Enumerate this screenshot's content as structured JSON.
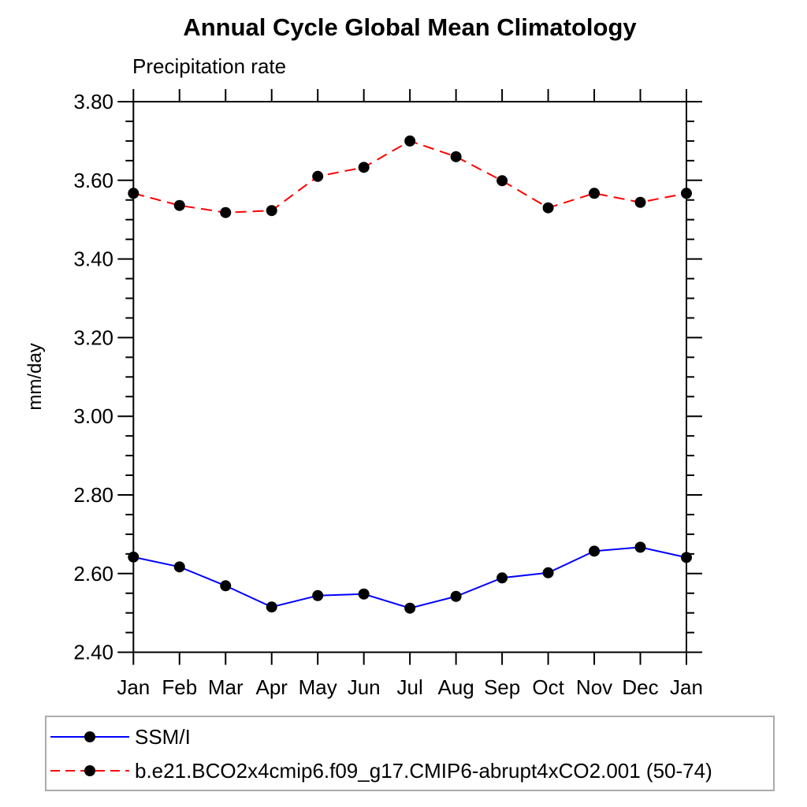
{
  "chart_data": {
    "type": "line",
    "title": "Annual Cycle Global Mean Climatology",
    "subtitle": "Precipitation rate",
    "ylabel": "mm/day",
    "categories": [
      "Jan",
      "Feb",
      "Mar",
      "Apr",
      "May",
      "Jun",
      "Jul",
      "Aug",
      "Sep",
      "Oct",
      "Nov",
      "Dec",
      "Jan"
    ],
    "ylim": [
      2.4,
      3.8
    ],
    "y_major_step": 0.2,
    "y_minor_step": 0.05,
    "y_tick_labels": [
      "2.40",
      "2.60",
      "2.80",
      "3.00",
      "3.20",
      "3.40",
      "3.60",
      "3.80"
    ],
    "grid": false,
    "legend_position": "bottom-left boxed",
    "series": [
      {
        "name": "SSM/I",
        "line_color": "#0000ff",
        "line_style": "solid",
        "marker": "filled-circle",
        "marker_color": "#000000",
        "values": [
          2.642,
          2.617,
          2.569,
          2.515,
          2.544,
          2.548,
          2.512,
          2.542,
          2.589,
          2.602,
          2.657,
          2.667,
          2.641
        ]
      },
      {
        "name": "b.e21.BCO2x4cmip6.f09_g17.CMIP6-abrupt4xCO2.001 (50-74)",
        "line_color": "#ff0000",
        "line_style": "dashed",
        "marker": "filled-circle",
        "marker_color": "#000000",
        "values": [
          3.567,
          3.536,
          3.518,
          3.523,
          3.61,
          3.633,
          3.7,
          3.66,
          3.599,
          3.53,
          3.567,
          3.544,
          3.567
        ]
      }
    ],
    "frame_color": "#000000",
    "legend_border_color": "#ababab"
  }
}
